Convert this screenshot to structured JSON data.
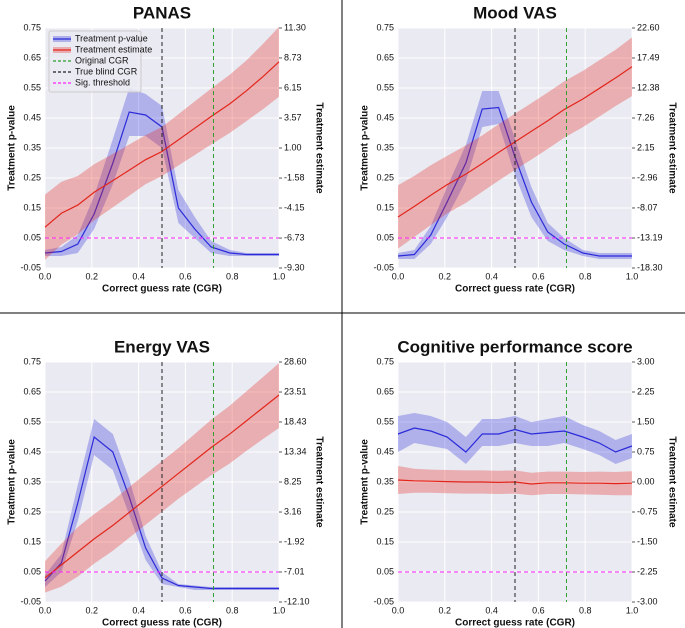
{
  "chart_data": [
    {
      "type": "line",
      "title": "PANAS",
      "x_label": "Correct guess rate (CGR)",
      "y_label": "Treatment p-value",
      "y2_label": "Treatment estimate",
      "legend": "upper left",
      "grid": true,
      "x": [
        0,
        0.07,
        0.14,
        0.21,
        0.29,
        0.36,
        0.43,
        0.5,
        0.57,
        0.64,
        0.71,
        0.79,
        0.86,
        0.93,
        1.0
      ],
      "xlim": [
        0,
        1
      ],
      "xticks": [
        {
          "value": 0,
          "label": "0.0"
        },
        0.2,
        0.4,
        0.6,
        0.8,
        {
          "value": 1,
          "label": "1.0"
        }
      ],
      "ylim": [
        -0.05,
        0.75
      ],
      "yticks": [
        -0.05,
        0.05,
        0.15,
        0.25,
        0.35,
        0.45,
        0.55,
        0.65,
        0.75
      ],
      "y2lim": [
        -9.3,
        11.3
      ],
      "y2ticks": [
        {
          "value": -9.3,
          "label": "-9.30"
        },
        -6.73,
        -4.15,
        -1.58,
        {
          "value": 1,
          "label": "1.00"
        },
        3.57,
        6.15,
        8.73,
        {
          "value": 11.3,
          "label": "11.30"
        }
      ],
      "series": [
        {
          "name": "Treatment p-value",
          "color": "#2b2bd9",
          "values": [
            0.0,
            0.005,
            0.03,
            0.13,
            0.3,
            0.47,
            0.46,
            0.42,
            0.15,
            0.08,
            0.02,
            0.0,
            -0.005,
            -0.005,
            -0.005
          ],
          "lower": [
            -0.01,
            -0.01,
            0.0,
            0.08,
            0.23,
            0.39,
            0.39,
            0.35,
            0.1,
            0.05,
            0.0,
            -0.01,
            -0.01,
            -0.01,
            -0.01
          ],
          "upper": [
            0.01,
            0.02,
            0.06,
            0.19,
            0.38,
            0.55,
            0.53,
            0.49,
            0.21,
            0.12,
            0.04,
            0.01,
            0.0,
            0.0,
            0.0
          ]
        },
        {
          "name": "Treatment estimate",
          "color": "#e3261c",
          "axis": "y2",
          "values": [
            -5.8,
            -4.6,
            -3.9,
            -2.8,
            -1.8,
            -0.9,
            0.0,
            0.7,
            1.7,
            2.7,
            3.7,
            4.8,
            5.9,
            7.1,
            8.4
          ],
          "lower": [
            -8.6,
            -7.3,
            -6.4,
            -5.2,
            -4.1,
            -3.1,
            -2.1,
            -1.4,
            -0.5,
            0.4,
            1.3,
            2.3,
            3.3,
            4.3,
            5.4
          ],
          "upper": [
            -3.0,
            -1.9,
            -1.4,
            -0.4,
            0.5,
            1.3,
            2.1,
            2.8,
            3.9,
            5.0,
            6.1,
            7.3,
            8.5,
            9.9,
            11.4
          ]
        }
      ],
      "ref_lines": [
        {
          "name": "Original CGR",
          "axis": "x",
          "value": 0.72,
          "color": "#2e9e2e"
        },
        {
          "name": "True blind CGR",
          "axis": "x",
          "value": 0.5,
          "color": "#222222"
        },
        {
          "name": "Sig. threshold",
          "axis": "y",
          "value": 0.05,
          "color": "#ff22ff"
        }
      ]
    },
    {
      "type": "line",
      "title": "Mood VAS",
      "x_label": "Correct guess rate (CGR)",
      "y_label": "Treatment p-value",
      "y2_label": "Treatment estimate",
      "grid": true,
      "x": [
        0,
        0.07,
        0.14,
        0.21,
        0.29,
        0.36,
        0.43,
        0.5,
        0.57,
        0.64,
        0.71,
        0.79,
        0.86,
        0.93,
        1.0
      ],
      "xlim": [
        0,
        1
      ],
      "xticks": [
        {
          "value": 0,
          "label": "0.0"
        },
        0.2,
        0.4,
        0.6,
        0.8,
        {
          "value": 1,
          "label": "1.0"
        }
      ],
      "ylim": [
        -0.05,
        0.75
      ],
      "yticks": [
        -0.05,
        0.05,
        0.15,
        0.25,
        0.35,
        0.45,
        0.55,
        0.65,
        0.75
      ],
      "y2lim": [
        -18.3,
        22.6
      ],
      "y2ticks": [
        {
          "value": -18.3,
          "label": "-18.30"
        },
        -13.19,
        -8.07,
        -2.96,
        2.15,
        7.26,
        12.38,
        17.49,
        {
          "value": 22.6,
          "label": "22.60"
        }
      ],
      "series": [
        {
          "color": "#2b2bd9",
          "values": [
            -0.01,
            -0.005,
            0.06,
            0.17,
            0.3,
            0.48,
            0.485,
            0.32,
            0.17,
            0.07,
            0.03,
            0.0,
            -0.01,
            -0.01,
            -0.01
          ],
          "lower": [
            -0.02,
            -0.02,
            0.03,
            0.12,
            0.24,
            0.42,
            0.43,
            0.26,
            0.12,
            0.04,
            0.01,
            -0.01,
            -0.02,
            -0.02,
            -0.02
          ],
          "upper": [
            0.0,
            0.01,
            0.09,
            0.22,
            0.36,
            0.54,
            0.54,
            0.38,
            0.22,
            0.1,
            0.05,
            0.01,
            0.0,
            0.0,
            0.0
          ]
        },
        {
          "color": "#e3261c",
          "axis": "y2",
          "values": [
            -9.6,
            -7.8,
            -5.9,
            -4.1,
            -2.3,
            -0.5,
            1.4,
            3.2,
            5.0,
            6.8,
            8.7,
            10.5,
            12.3,
            14.1,
            16.0
          ],
          "lower": [
            -15.0,
            -13.0,
            -11.0,
            -9.0,
            -7.2,
            -5.3,
            -3.4,
            -1.6,
            0.2,
            2.0,
            3.9,
            5.7,
            7.5,
            9.3,
            11.0
          ],
          "upper": [
            -4.2,
            -2.6,
            -0.8,
            0.8,
            2.6,
            4.3,
            6.2,
            8.0,
            9.8,
            11.6,
            13.5,
            15.3,
            17.1,
            18.9,
            21.0
          ]
        }
      ],
      "ref_lines": [
        {
          "axis": "x",
          "value": 0.72,
          "color": "#2e9e2e"
        },
        {
          "axis": "x",
          "value": 0.5,
          "color": "#222222"
        },
        {
          "axis": "y",
          "value": 0.05,
          "color": "#ff22ff"
        }
      ]
    },
    {
      "type": "line",
      "title": "Energy VAS",
      "x_label": "Correct guess rate (CGR)",
      "y_label": "Treatment p-value",
      "y2_label": "Treatment estimate",
      "grid": true,
      "x": [
        0,
        0.07,
        0.14,
        0.21,
        0.29,
        0.36,
        0.43,
        0.5,
        0.57,
        0.64,
        0.71,
        0.79,
        0.86,
        0.93,
        1.0
      ],
      "xlim": [
        0,
        1
      ],
      "xticks": [
        {
          "value": 0,
          "label": "0.0"
        },
        0.2,
        0.4,
        0.6,
        0.8,
        {
          "value": 1,
          "label": "1.0"
        }
      ],
      "ylim": [
        -0.05,
        0.75
      ],
      "yticks": [
        -0.05,
        0.05,
        0.15,
        0.25,
        0.35,
        0.45,
        0.55,
        0.65,
        0.75
      ],
      "y2lim": [
        -12.1,
        28.6
      ],
      "y2ticks": [
        {
          "value": -12.1,
          "label": "-12.10"
        },
        -7.01,
        -1.92,
        3.16,
        8.25,
        13.34,
        18.43,
        23.51,
        {
          "value": 28.6,
          "label": "28.60"
        }
      ],
      "series": [
        {
          "color": "#2b2bd9",
          "values": [
            0.02,
            0.08,
            0.28,
            0.5,
            0.45,
            0.3,
            0.13,
            0.03,
            0.005,
            0.0,
            -0.005,
            -0.005,
            -0.005,
            -0.005,
            -0.005
          ],
          "lower": [
            0.0,
            0.05,
            0.22,
            0.44,
            0.39,
            0.24,
            0.09,
            0.01,
            0.0,
            -0.01,
            -0.01,
            -0.01,
            -0.01,
            -0.01,
            -0.01
          ],
          "upper": [
            0.04,
            0.11,
            0.34,
            0.56,
            0.51,
            0.36,
            0.17,
            0.05,
            0.01,
            0.005,
            0.0,
            0.0,
            0.0,
            0.0,
            0.0
          ]
        },
        {
          "color": "#e3261c",
          "axis": "y2",
          "values": [
            -8.0,
            -5.8,
            -3.6,
            -1.4,
            0.9,
            3.1,
            5.3,
            7.5,
            9.7,
            11.9,
            14.1,
            16.4,
            18.6,
            20.8,
            23.0
          ],
          "lower": [
            -10.5,
            -9.5,
            -7.8,
            -5.6,
            -3.4,
            -1.2,
            1.0,
            3.2,
            5.4,
            7.4,
            9.4,
            11.4,
            13.5,
            15.5,
            17.4
          ],
          "upper": [
            -5.2,
            -2.2,
            0.6,
            2.8,
            5.1,
            7.4,
            9.6,
            11.8,
            14.0,
            16.4,
            18.8,
            21.2,
            23.6,
            26.0,
            28.4
          ]
        }
      ],
      "ref_lines": [
        {
          "axis": "x",
          "value": 0.72,
          "color": "#2e9e2e"
        },
        {
          "axis": "x",
          "value": 0.5,
          "color": "#222222"
        },
        {
          "axis": "y",
          "value": 0.05,
          "color": "#ff22ff"
        }
      ]
    },
    {
      "type": "line",
      "title": "Cognitive performance score",
      "x_label": "Correct guess rate (CGR)",
      "y_label": "Treatment p-value",
      "y2_label": "Treatment estimate",
      "grid": true,
      "x": [
        0,
        0.07,
        0.14,
        0.21,
        0.29,
        0.36,
        0.43,
        0.5,
        0.57,
        0.64,
        0.71,
        0.79,
        0.86,
        0.93,
        1.0
      ],
      "xlim": [
        0,
        1
      ],
      "xticks": [
        {
          "value": 0,
          "label": "0.0"
        },
        0.2,
        0.4,
        0.6,
        0.8,
        {
          "value": 1,
          "label": "1.0"
        }
      ],
      "ylim": [
        -0.05,
        0.75
      ],
      "yticks": [
        -0.05,
        0.05,
        0.15,
        0.25,
        0.35,
        0.45,
        0.55,
        0.65,
        0.75
      ],
      "y2lim": [
        -3,
        3
      ],
      "y2ticks": [
        {
          "value": -3,
          "label": "-3.00"
        },
        -2.25,
        {
          "value": -1.5,
          "label": "-1.50"
        },
        -0.75,
        {
          "value": 0,
          "label": "0.00"
        },
        0.75,
        {
          "value": 1.5,
          "label": "1.50"
        },
        2.25,
        {
          "value": 3,
          "label": "3.00"
        }
      ],
      "series": [
        {
          "color": "#2b2bd9",
          "values": [
            0.51,
            0.53,
            0.52,
            0.5,
            0.45,
            0.51,
            0.51,
            0.525,
            0.51,
            0.515,
            0.52,
            0.5,
            0.48,
            0.45,
            0.47
          ],
          "lower": [
            0.45,
            0.48,
            0.47,
            0.46,
            0.41,
            0.47,
            0.47,
            0.48,
            0.47,
            0.47,
            0.48,
            0.46,
            0.44,
            0.41,
            0.43
          ],
          "upper": [
            0.57,
            0.58,
            0.57,
            0.55,
            0.5,
            0.56,
            0.56,
            0.57,
            0.55,
            0.56,
            0.57,
            0.54,
            0.52,
            0.49,
            0.51
          ]
        },
        {
          "color": "#e3261c",
          "axis": "y2",
          "values": [
            0.05,
            0.03,
            0.02,
            0.01,
            0.0,
            0.0,
            -0.01,
            0.0,
            -0.05,
            -0.02,
            -0.02,
            -0.03,
            -0.03,
            -0.04,
            -0.03
          ],
          "lower": [
            -0.3,
            -0.27,
            -0.27,
            -0.28,
            -0.29,
            -0.29,
            -0.3,
            -0.29,
            -0.33,
            -0.3,
            -0.3,
            -0.31,
            -0.32,
            -0.33,
            -0.33
          ],
          "upper": [
            0.4,
            0.33,
            0.31,
            0.3,
            0.29,
            0.29,
            0.28,
            0.29,
            0.23,
            0.26,
            0.26,
            0.25,
            0.26,
            0.25,
            0.27
          ]
        }
      ],
      "ref_lines": [
        {
          "axis": "x",
          "value": 0.72,
          "color": "#2e9e2e"
        },
        {
          "axis": "x",
          "value": 0.5,
          "color": "#222222"
        },
        {
          "axis": "y",
          "value": 0.05,
          "color": "#ff22ff"
        }
      ]
    }
  ]
}
